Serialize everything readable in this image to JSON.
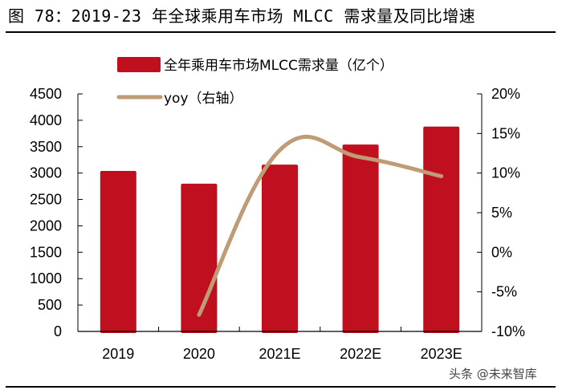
{
  "title": "图 78：2019-23 年全球乘用车市场 MLCC 需求量及同比增速",
  "watermark": "头条 @未来智库",
  "chart_data": {
    "type": "bar+line",
    "categories": [
      "2019",
      "2020",
      "2021E",
      "2022E",
      "2023E"
    ],
    "series": [
      {
        "name": "全年乘用车市场MLCC需求量（亿个）",
        "type": "bar",
        "axis": "left",
        "color": "#C00F1E",
        "values": [
          3040,
          2800,
          3160,
          3540,
          3880
        ]
      },
      {
        "name": "yoy（右轴）",
        "type": "line",
        "axis": "right",
        "color": "#BF9B76",
        "smooth": true,
        "values": [
          null,
          -7.9,
          12.9,
          12.0,
          9.6
        ]
      }
    ],
    "y_left": {
      "range": [
        0,
        4500
      ],
      "ticks": [
        "0",
        "500",
        "1000",
        "1500",
        "2000",
        "2500",
        "3000",
        "3500",
        "4000",
        "4500"
      ]
    },
    "y_right": {
      "range": [
        -10,
        20
      ],
      "ticks": [
        "-10%",
        "-5%",
        "0%",
        "5%",
        "10%",
        "15%",
        "20%"
      ]
    },
    "legend_placement": "top",
    "grid": false
  }
}
